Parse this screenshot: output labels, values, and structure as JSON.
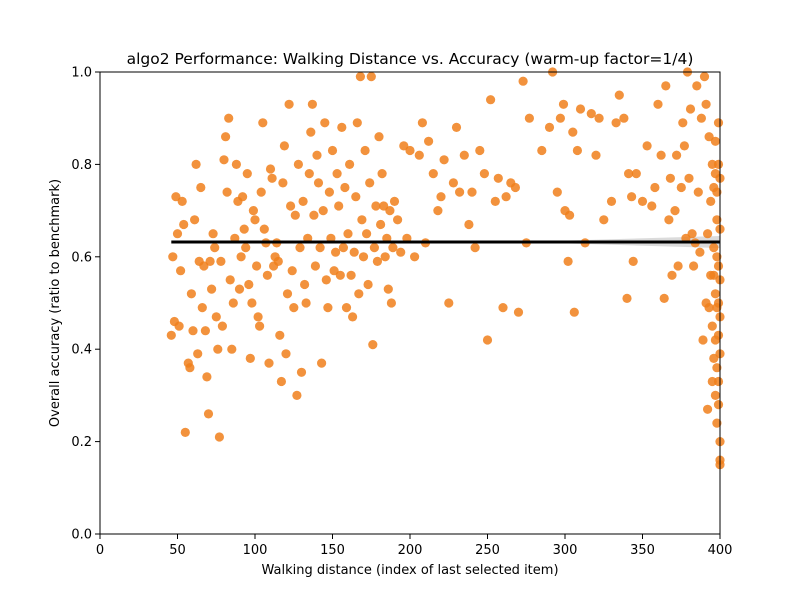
{
  "chart_data": {
    "type": "scatter",
    "title": "algo2 Performance: Walking Distance vs. Accuracy (warm-up factor=1/4)",
    "xlabel": "Walking distance (index of last selected item)",
    "ylabel": "Overall accuracy (ratio to benchmark)",
    "xlim": [
      0,
      400
    ],
    "ylim": [
      0.0,
      1.0
    ],
    "xticks": [
      0,
      50,
      100,
      150,
      200,
      250,
      300,
      350,
      400
    ],
    "yticks": [
      0.0,
      0.2,
      0.4,
      0.6,
      0.8,
      1.0
    ],
    "xtick_labels": [
      "0",
      "50",
      "100",
      "150",
      "200",
      "250",
      "300",
      "350",
      "400"
    ],
    "ytick_labels": [
      "0.0",
      "0.2",
      "0.4",
      "0.6",
      "0.8",
      "1.0"
    ],
    "grid": false,
    "colors": {
      "points": "#f07f1b",
      "regression": "#000000",
      "confidence_band": "#bdbdbd"
    },
    "regression": {
      "x": [
        46,
        400
      ],
      "y": [
        0.632,
        0.632
      ],
      "ci_x": [
        300,
        400
      ],
      "ci_halfwidth": [
        0.003,
        0.013
      ]
    },
    "points": [
      [
        46,
        0.43
      ],
      [
        47,
        0.6
      ],
      [
        48,
        0.46
      ],
      [
        49,
        0.73
      ],
      [
        50,
        0.65
      ],
      [
        51,
        0.45
      ],
      [
        52,
        0.57
      ],
      [
        53,
        0.72
      ],
      [
        54,
        0.67
      ],
      [
        55,
        0.22
      ],
      [
        57,
        0.37
      ],
      [
        58,
        0.36
      ],
      [
        59,
        0.52
      ],
      [
        60,
        0.44
      ],
      [
        61,
        0.68
      ],
      [
        62,
        0.8
      ],
      [
        63,
        0.39
      ],
      [
        64,
        0.59
      ],
      [
        65,
        0.75
      ],
      [
        66,
        0.49
      ],
      [
        67,
        0.58
      ],
      [
        68,
        0.44
      ],
      [
        69,
        0.34
      ],
      [
        70,
        0.26
      ],
      [
        71,
        0.59
      ],
      [
        72,
        0.53
      ],
      [
        73,
        0.65
      ],
      [
        74,
        0.62
      ],
      [
        75,
        0.47
      ],
      [
        76,
        0.4
      ],
      [
        77,
        0.21
      ],
      [
        78,
        0.59
      ],
      [
        79,
        0.45
      ],
      [
        80,
        0.81
      ],
      [
        81,
        0.86
      ],
      [
        82,
        0.74
      ],
      [
        83,
        0.9
      ],
      [
        84,
        0.55
      ],
      [
        85,
        0.4
      ],
      [
        86,
        0.5
      ],
      [
        87,
        0.64
      ],
      [
        88,
        0.8
      ],
      [
        89,
        0.72
      ],
      [
        90,
        0.53
      ],
      [
        91,
        0.6
      ],
      [
        92,
        0.73
      ],
      [
        93,
        0.66
      ],
      [
        94,
        0.62
      ],
      [
        95,
        0.78
      ],
      [
        96,
        0.54
      ],
      [
        97,
        0.38
      ],
      [
        98,
        0.5
      ],
      [
        99,
        0.7
      ],
      [
        100,
        0.68
      ],
      [
        101,
        0.58
      ],
      [
        102,
        0.47
      ],
      [
        103,
        0.45
      ],
      [
        104,
        0.74
      ],
      [
        105,
        0.89
      ],
      [
        106,
        0.66
      ],
      [
        107,
        0.63
      ],
      [
        108,
        0.56
      ],
      [
        109,
        0.37
      ],
      [
        110,
        0.79
      ],
      [
        111,
        0.77
      ],
      [
        112,
        0.58
      ],
      [
        113,
        0.6
      ],
      [
        114,
        0.63
      ],
      [
        115,
        0.59
      ],
      [
        116,
        0.43
      ],
      [
        117,
        0.33
      ],
      [
        118,
        0.76
      ],
      [
        119,
        0.84
      ],
      [
        120,
        0.39
      ],
      [
        121,
        0.52
      ],
      [
        122,
        0.93
      ],
      [
        123,
        0.71
      ],
      [
        124,
        0.57
      ],
      [
        125,
        0.49
      ],
      [
        126,
        0.69
      ],
      [
        127,
        0.3
      ],
      [
        128,
        0.8
      ],
      [
        129,
        0.62
      ],
      [
        130,
        0.35
      ],
      [
        131,
        0.72
      ],
      [
        132,
        0.54
      ],
      [
        133,
        0.5
      ],
      [
        134,
        0.64
      ],
      [
        135,
        0.78
      ],
      [
        136,
        0.87
      ],
      [
        137,
        0.93
      ],
      [
        138,
        0.69
      ],
      [
        139,
        0.58
      ],
      [
        140,
        0.82
      ],
      [
        141,
        0.76
      ],
      [
        142,
        0.62
      ],
      [
        143,
        0.37
      ],
      [
        144,
        0.7
      ],
      [
        145,
        0.89
      ],
      [
        146,
        0.55
      ],
      [
        147,
        0.49
      ],
      [
        148,
        0.74
      ],
      [
        149,
        0.64
      ],
      [
        150,
        0.83
      ],
      [
        151,
        0.57
      ],
      [
        152,
        0.61
      ],
      [
        153,
        0.78
      ],
      [
        154,
        0.71
      ],
      [
        155,
        0.56
      ],
      [
        156,
        0.88
      ],
      [
        157,
        0.62
      ],
      [
        158,
        0.75
      ],
      [
        159,
        0.49
      ],
      [
        160,
        0.65
      ],
      [
        161,
        0.8
      ],
      [
        162,
        0.56
      ],
      [
        163,
        0.47
      ],
      [
        164,
        0.61
      ],
      [
        165,
        0.73
      ],
      [
        166,
        0.89
      ],
      [
        167,
        0.52
      ],
      [
        168,
        0.99
      ],
      [
        169,
        0.68
      ],
      [
        170,
        0.6
      ],
      [
        171,
        0.83
      ],
      [
        172,
        0.65
      ],
      [
        173,
        0.54
      ],
      [
        174,
        0.76
      ],
      [
        175,
        0.99
      ],
      [
        176,
        0.41
      ],
      [
        177,
        0.62
      ],
      [
        178,
        0.71
      ],
      [
        179,
        0.59
      ],
      [
        180,
        0.86
      ],
      [
        181,
        0.67
      ],
      [
        182,
        0.78
      ],
      [
        183,
        0.71
      ],
      [
        184,
        0.6
      ],
      [
        185,
        0.64
      ],
      [
        186,
        0.53
      ],
      [
        187,
        0.7
      ],
      [
        188,
        0.5
      ],
      [
        189,
        0.62
      ],
      [
        190,
        0.72
      ],
      [
        192,
        0.68
      ],
      [
        194,
        0.61
      ],
      [
        196,
        0.84
      ],
      [
        198,
        0.64
      ],
      [
        200,
        0.83
      ],
      [
        203,
        0.6
      ],
      [
        206,
        0.82
      ],
      [
        208,
        0.89
      ],
      [
        210,
        0.63
      ],
      [
        212,
        0.85
      ],
      [
        215,
        0.78
      ],
      [
        218,
        0.7
      ],
      [
        220,
        0.73
      ],
      [
        222,
        0.81
      ],
      [
        225,
        0.5
      ],
      [
        228,
        0.76
      ],
      [
        230,
        0.88
      ],
      [
        232,
        0.74
      ],
      [
        235,
        0.82
      ],
      [
        238,
        0.67
      ],
      [
        240,
        0.74
      ],
      [
        242,
        0.62
      ],
      [
        245,
        0.83
      ],
      [
        248,
        0.78
      ],
      [
        250,
        0.42
      ],
      [
        252,
        0.94
      ],
      [
        255,
        0.72
      ],
      [
        257,
        0.77
      ],
      [
        260,
        0.49
      ],
      [
        262,
        0.73
      ],
      [
        265,
        0.76
      ],
      [
        268,
        0.75
      ],
      [
        270,
        0.48
      ],
      [
        273,
        0.98
      ],
      [
        275,
        0.63
      ],
      [
        277,
        0.9
      ],
      [
        285,
        0.83
      ],
      [
        290,
        0.88
      ],
      [
        292,
        1.0
      ],
      [
        295,
        0.74
      ],
      [
        297,
        0.9
      ],
      [
        299,
        0.93
      ],
      [
        300,
        0.7
      ],
      [
        302,
        0.59
      ],
      [
        303,
        0.69
      ],
      [
        305,
        0.87
      ],
      [
        306,
        0.48
      ],
      [
        308,
        0.83
      ],
      [
        310,
        0.92
      ],
      [
        313,
        0.63
      ],
      [
        317,
        0.91
      ],
      [
        320,
        0.82
      ],
      [
        322,
        0.9
      ],
      [
        325,
        0.68
      ],
      [
        330,
        0.72
      ],
      [
        333,
        0.89
      ],
      [
        335,
        0.95
      ],
      [
        338,
        0.9
      ],
      [
        340,
        0.51
      ],
      [
        341,
        0.78
      ],
      [
        343,
        0.73
      ],
      [
        344,
        0.59
      ],
      [
        346,
        0.78
      ],
      [
        350,
        0.72
      ],
      [
        353,
        0.84
      ],
      [
        356,
        0.71
      ],
      [
        358,
        0.75
      ],
      [
        360,
        0.93
      ],
      [
        362,
        0.82
      ],
      [
        364,
        0.51
      ],
      [
        365,
        0.97
      ],
      [
        367,
        0.68
      ],
      [
        368,
        0.77
      ],
      [
        369,
        0.56
      ],
      [
        371,
        0.7
      ],
      [
        372,
        0.82
      ],
      [
        373,
        0.58
      ],
      [
        375,
        0.75
      ],
      [
        376,
        0.89
      ],
      [
        377,
        0.84
      ],
      [
        378,
        0.64
      ],
      [
        379,
        1.0
      ],
      [
        380,
        0.77
      ],
      [
        381,
        0.92
      ],
      [
        382,
        0.65
      ],
      [
        383,
        0.58
      ],
      [
        384,
        0.63
      ],
      [
        385,
        0.97
      ],
      [
        386,
        0.74
      ],
      [
        387,
        0.61
      ],
      [
        388,
        0.9
      ],
      [
        389,
        0.42
      ],
      [
        390,
        0.99
      ],
      [
        391,
        0.5
      ],
      [
        391,
        0.93
      ],
      [
        392,
        0.65
      ],
      [
        392,
        0.27
      ],
      [
        393,
        0.86
      ],
      [
        393,
        0.49
      ],
      [
        394,
        0.72
      ],
      [
        394,
        0.56
      ],
      [
        395,
        0.8
      ],
      [
        395,
        0.45
      ],
      [
        395,
        0.33
      ],
      [
        396,
        0.75
      ],
      [
        396,
        0.62
      ],
      [
        396,
        0.38
      ],
      [
        396,
        0.56
      ],
      [
        397,
        0.85
      ],
      [
        397,
        0.78
      ],
      [
        397,
        0.52
      ],
      [
        397,
        0.42
      ],
      [
        397,
        0.3
      ],
      [
        398,
        0.74
      ],
      [
        398,
        0.68
      ],
      [
        398,
        0.6
      ],
      [
        398,
        0.49
      ],
      [
        398,
        0.36
      ],
      [
        398,
        0.24
      ],
      [
        399,
        0.89
      ],
      [
        399,
        0.8
      ],
      [
        399,
        0.58
      ],
      [
        399,
        0.5
      ],
      [
        399,
        0.43
      ],
      [
        399,
        0.33
      ],
      [
        399,
        0.28
      ],
      [
        400,
        0.77
      ],
      [
        400,
        0.66
      ],
      [
        400,
        0.55
      ],
      [
        400,
        0.47
      ],
      [
        400,
        0.39
      ],
      [
        400,
        0.2
      ],
      [
        400,
        0.16
      ],
      [
        400,
        0.15
      ]
    ]
  }
}
